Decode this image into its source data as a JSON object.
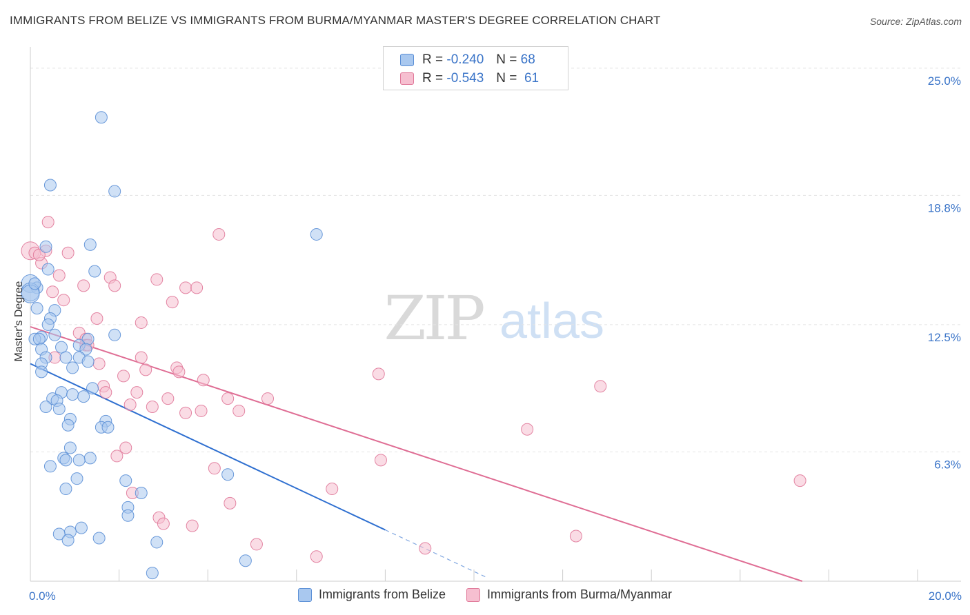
{
  "title": "IMMIGRANTS FROM BELIZE VS IMMIGRANTS FROM BURMA/MYANMAR MASTER'S DEGREE CORRELATION CHART",
  "source": "Source: ZipAtlas.com",
  "watermark": {
    "zip": "ZIP",
    "atlas": "atlas"
  },
  "legend": {
    "r_label": "R =",
    "n_label": "N =",
    "items": [
      {
        "r": "-0.240",
        "n": "68",
        "color": "#a9c8ef",
        "border": "#5b8fd6"
      },
      {
        "r": "-0.543",
        "n": "61",
        "color": "#f6bfd0",
        "border": "#e07899"
      }
    ]
  },
  "bottom_legend": [
    "Immigrants from Belize",
    "Immigrants from Burma/Myanmar"
  ],
  "chart_data": {
    "type": "scatter",
    "xlabel": "",
    "ylabel": "Master's Degree",
    "xlim": [
      0,
      20
    ],
    "ylim": [
      0,
      25.7
    ],
    "x_tick_labels": [
      {
        "value": 0,
        "label": "0.0%"
      },
      {
        "value": 20,
        "label": "20.0%"
      }
    ],
    "y_tick_labels": [
      {
        "value": 6.3,
        "label": "6.3%"
      },
      {
        "value": 12.5,
        "label": "12.5%"
      },
      {
        "value": 18.8,
        "label": "18.8%"
      },
      {
        "value": 25.0,
        "label": "25.0%"
      }
    ],
    "x_minor_ticks": [
      0,
      2,
      4,
      6,
      8,
      10,
      12,
      14,
      16,
      18,
      20
    ],
    "grid": true,
    "colors": {
      "belize": "#5b8fd6",
      "belize_fill": "#a9c8ef",
      "burma": "#e07899",
      "burma_fill": "#f6bfd0",
      "axis_label": "#3a74c8"
    },
    "series": [
      {
        "name": "Immigrants from Belize",
        "trend": {
          "x0": 0,
          "y0": 10.6,
          "x1": 8.0,
          "y1": 2.5,
          "dash_to_x": 10.3
        },
        "points": [
          [
            1.6,
            22.6
          ],
          [
            1.9,
            19.0
          ],
          [
            0.45,
            19.3
          ],
          [
            6.45,
            16.9
          ],
          [
            1.35,
            16.4
          ],
          [
            0.35,
            16.3
          ],
          [
            0.4,
            15.2
          ],
          [
            1.45,
            15.1
          ],
          [
            0.0,
            14.5
          ],
          [
            0.15,
            14.3
          ],
          [
            0.0,
            14.1
          ],
          [
            0.15,
            13.3
          ],
          [
            0.55,
            13.2
          ],
          [
            0.45,
            12.8
          ],
          [
            0.4,
            12.5
          ],
          [
            0.55,
            12.0
          ],
          [
            1.9,
            12.0
          ],
          [
            0.25,
            11.9
          ],
          [
            1.3,
            11.8
          ],
          [
            0.1,
            11.8
          ],
          [
            0.2,
            11.8
          ],
          [
            1.1,
            11.5
          ],
          [
            0.7,
            11.4
          ],
          [
            0.25,
            11.3
          ],
          [
            1.25,
            11.3
          ],
          [
            0.35,
            10.9
          ],
          [
            1.1,
            10.9
          ],
          [
            0.8,
            10.9
          ],
          [
            1.3,
            10.7
          ],
          [
            0.25,
            10.6
          ],
          [
            0.95,
            10.4
          ],
          [
            0.25,
            10.2
          ],
          [
            0.7,
            9.2
          ],
          [
            1.4,
            9.4
          ],
          [
            0.95,
            9.1
          ],
          [
            1.2,
            9.0
          ],
          [
            0.5,
            8.9
          ],
          [
            0.6,
            8.8
          ],
          [
            0.35,
            8.5
          ],
          [
            0.65,
            8.4
          ],
          [
            0.9,
            7.9
          ],
          [
            1.7,
            7.8
          ],
          [
            0.85,
            7.6
          ],
          [
            1.6,
            7.5
          ],
          [
            1.75,
            7.5
          ],
          [
            0.9,
            6.5
          ],
          [
            0.75,
            6.0
          ],
          [
            1.35,
            6.0
          ],
          [
            1.1,
            5.9
          ],
          [
            0.8,
            5.9
          ],
          [
            0.45,
            5.6
          ],
          [
            4.45,
            5.2
          ],
          [
            1.05,
            5.0
          ],
          [
            2.15,
            4.9
          ],
          [
            0.8,
            4.5
          ],
          [
            2.5,
            4.3
          ],
          [
            2.2,
            3.6
          ],
          [
            2.2,
            3.2
          ],
          [
            1.15,
            2.6
          ],
          [
            0.9,
            2.4
          ],
          [
            0.65,
            2.3
          ],
          [
            0.85,
            2.0
          ],
          [
            1.55,
            2.1
          ],
          [
            2.85,
            1.9
          ],
          [
            4.85,
            1.0
          ],
          [
            2.75,
            0.4
          ],
          [
            0.0,
            14.0
          ],
          [
            0.1,
            14.5
          ]
        ]
      },
      {
        "name": "Immigrants from Burma/Myanmar",
        "trend": {
          "x0": 0,
          "y0": 12.4,
          "x1": 17.4,
          "y1": 0.0
        },
        "points": [
          [
            0.0,
            16.1
          ],
          [
            0.1,
            16.0
          ],
          [
            0.35,
            16.1
          ],
          [
            0.85,
            16.0
          ],
          [
            0.4,
            17.5
          ],
          [
            4.25,
            16.9
          ],
          [
            0.25,
            15.5
          ],
          [
            0.65,
            14.9
          ],
          [
            1.8,
            14.8
          ],
          [
            2.85,
            14.7
          ],
          [
            1.2,
            14.4
          ],
          [
            1.9,
            14.4
          ],
          [
            3.5,
            14.3
          ],
          [
            3.75,
            14.3
          ],
          [
            0.5,
            14.1
          ],
          [
            0.75,
            13.7
          ],
          [
            3.2,
            13.6
          ],
          [
            1.5,
            12.8
          ],
          [
            2.5,
            12.6
          ],
          [
            1.1,
            12.1
          ],
          [
            1.25,
            11.8
          ],
          [
            1.25,
            11.5
          ],
          [
            1.3,
            11.5
          ],
          [
            0.55,
            10.9
          ],
          [
            2.5,
            10.9
          ],
          [
            1.55,
            10.6
          ],
          [
            2.6,
            10.3
          ],
          [
            3.3,
            10.4
          ],
          [
            3.35,
            10.2
          ],
          [
            7.85,
            10.1
          ],
          [
            2.1,
            10.0
          ],
          [
            3.9,
            9.8
          ],
          [
            1.65,
            9.5
          ],
          [
            12.85,
            9.5
          ],
          [
            1.7,
            9.2
          ],
          [
            2.4,
            9.2
          ],
          [
            4.45,
            8.9
          ],
          [
            3.1,
            8.9
          ],
          [
            5.35,
            8.9
          ],
          [
            2.25,
            8.6
          ],
          [
            2.75,
            8.5
          ],
          [
            3.85,
            8.3
          ],
          [
            4.7,
            8.3
          ],
          [
            3.5,
            8.2
          ],
          [
            11.2,
            7.4
          ],
          [
            2.15,
            6.5
          ],
          [
            1.95,
            6.1
          ],
          [
            7.9,
            5.9
          ],
          [
            4.15,
            5.5
          ],
          [
            17.35,
            4.9
          ],
          [
            6.8,
            4.5
          ],
          [
            2.3,
            4.3
          ],
          [
            4.5,
            3.8
          ],
          [
            2.9,
            3.1
          ],
          [
            3.0,
            2.8
          ],
          [
            3.65,
            2.7
          ],
          [
            12.3,
            2.2
          ],
          [
            5.1,
            1.8
          ],
          [
            8.9,
            1.6
          ],
          [
            6.45,
            1.2
          ],
          [
            0.2,
            15.9
          ]
        ]
      }
    ]
  }
}
